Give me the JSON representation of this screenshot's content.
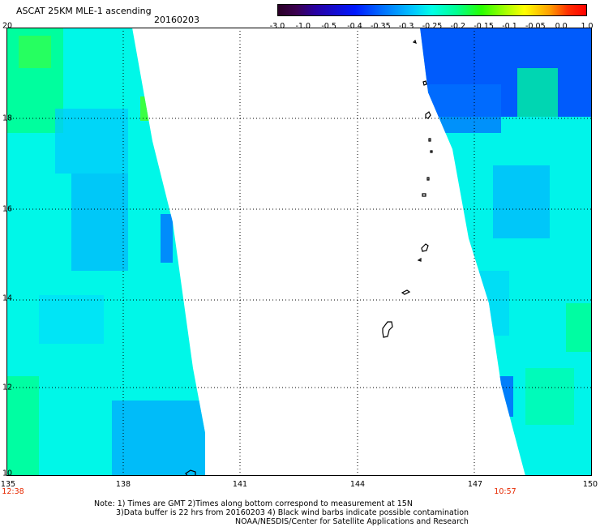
{
  "header": {
    "title": "ASCAT 25KM MLE-1 ascending",
    "date": "20160203"
  },
  "colorbar": {
    "ticks": [
      "-3.0",
      "-1.0",
      "-0.5",
      "-0.4",
      "-0.35",
      "-0.3",
      "-0.25",
      "-0.2",
      "-0.15",
      "-0.1",
      "-0.05",
      "0.0",
      "1.0"
    ]
  },
  "map": {
    "lat_labels": [
      "20",
      "18",
      "16",
      "14",
      "12",
      "10"
    ],
    "lon_labels": [
      "135",
      "138",
      "141",
      "144",
      "147",
      "150"
    ],
    "lat_range": [
      10,
      20
    ],
    "lon_range": [
      135,
      150
    ],
    "grid": "dotted",
    "time_labels": [
      "12:38",
      "10:57"
    ],
    "colors": {
      "swath_base": "#00ffe8",
      "blue": "#0050ff",
      "light_blue": "#00b4ff",
      "green": "#00ff78",
      "coast": "#000000"
    }
  },
  "notes": [
    "Note: 1) Times are GMT 2)Times along bottom correspond to measurement at 15N",
    "3)Data buffer is 22 hrs from 20160203 4) Black wind barbs indicate possible contamination",
    "NOAA/NESDIS/Center for Satellite Applications and Research"
  ]
}
